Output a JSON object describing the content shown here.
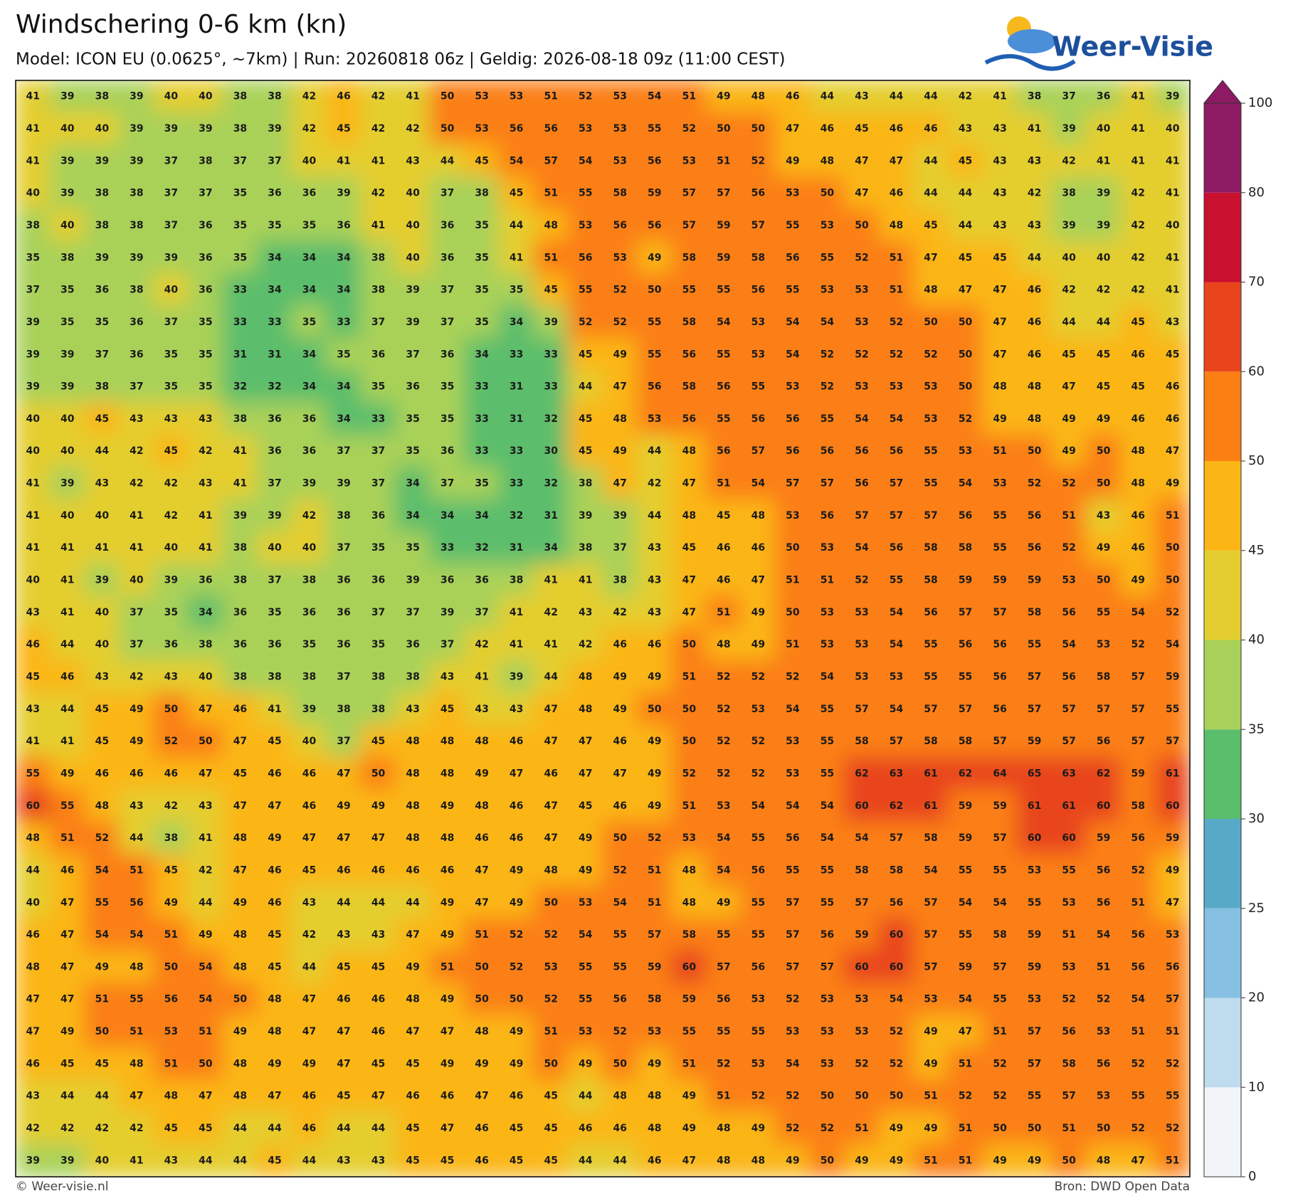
{
  "header": {
    "title": "Windschering 0-6 km (kn)",
    "subtitle": "Model: ICON EU (0.0625°, ~7km)  |  Run: 20260818 06z  |  Geldig: 2026-08-18 09z (11:00 CEST)",
    "logo": "Weer-Visie"
  },
  "map": {
    "rows": [
      [
        41,
        39,
        38,
        39,
        40,
        40,
        38,
        38,
        42,
        46,
        42,
        41,
        50,
        53,
        53,
        51,
        52,
        53,
        54,
        51,
        49,
        48,
        46,
        44,
        43,
        44,
        44,
        42,
        41,
        38,
        37,
        36,
        41,
        39
      ],
      [
        41,
        40,
        40,
        39,
        39,
        39,
        38,
        39,
        42,
        45,
        42,
        42,
        50,
        53,
        56,
        56,
        53,
        53,
        55,
        52,
        50,
        50,
        47,
        46,
        45,
        46,
        46,
        43,
        43,
        41,
        39,
        40,
        41,
        40
      ],
      [
        41,
        39,
        39,
        39,
        37,
        38,
        37,
        37,
        40,
        41,
        41,
        43,
        44,
        45,
        54,
        57,
        54,
        53,
        56,
        53,
        51,
        52,
        49,
        48,
        47,
        47,
        44,
        45,
        43,
        43,
        42,
        41,
        41,
        41
      ],
      [
        40,
        39,
        38,
        38,
        37,
        37,
        35,
        36,
        36,
        39,
        42,
        40,
        37,
        38,
        45,
        51,
        55,
        58,
        59,
        57,
        57,
        56,
        53,
        50,
        47,
        46,
        44,
        44,
        43,
        42,
        38,
        39,
        42,
        41
      ],
      [
        38,
        40,
        38,
        38,
        37,
        36,
        35,
        35,
        35,
        36,
        41,
        40,
        36,
        35,
        44,
        48,
        53,
        56,
        56,
        57,
        59,
        57,
        55,
        53,
        50,
        48,
        45,
        44,
        43,
        43,
        39,
        39,
        42,
        40
      ],
      [
        35,
        38,
        39,
        39,
        39,
        36,
        35,
        34,
        34,
        34,
        38,
        40,
        36,
        35,
        41,
        51,
        56,
        53,
        49,
        58,
        59,
        58,
        56,
        55,
        52,
        51,
        47,
        45,
        45,
        44,
        40,
        40,
        42,
        41
      ],
      [
        37,
        35,
        36,
        38,
        40,
        36,
        33,
        34,
        34,
        34,
        38,
        39,
        37,
        35,
        35,
        45,
        55,
        52,
        50,
        55,
        55,
        56,
        55,
        53,
        53,
        51,
        48,
        47,
        47,
        46,
        42,
        42,
        42,
        41
      ],
      [
        39,
        35,
        35,
        36,
        37,
        35,
        33,
        33,
        35,
        33,
        37,
        39,
        37,
        35,
        34,
        39,
        52,
        52,
        55,
        58,
        54,
        53,
        54,
        54,
        53,
        52,
        50,
        50,
        47,
        46,
        44,
        44,
        45,
        43
      ],
      [
        39,
        39,
        37,
        36,
        35,
        35,
        31,
        31,
        34,
        35,
        36,
        37,
        36,
        34,
        33,
        33,
        45,
        49,
        55,
        56,
        55,
        53,
        54,
        52,
        52,
        52,
        52,
        50,
        47,
        46,
        45,
        45,
        46,
        45
      ],
      [
        39,
        39,
        38,
        37,
        35,
        35,
        32,
        32,
        34,
        34,
        35,
        36,
        35,
        33,
        31,
        33,
        44,
        47,
        56,
        58,
        56,
        55,
        53,
        52,
        53,
        53,
        53,
        50,
        48,
        48,
        47,
        45,
        45,
        46
      ],
      [
        40,
        40,
        45,
        43,
        43,
        43,
        38,
        36,
        36,
        34,
        33,
        35,
        35,
        33,
        31,
        32,
        45,
        48,
        53,
        56,
        55,
        56,
        56,
        55,
        54,
        54,
        53,
        52,
        49,
        48,
        49,
        49,
        46,
        46
      ],
      [
        40,
        40,
        44,
        42,
        45,
        42,
        41,
        36,
        36,
        37,
        37,
        35,
        36,
        33,
        33,
        30,
        45,
        49,
        44,
        48,
        56,
        57,
        56,
        56,
        56,
        56,
        55,
        53,
        51,
        50,
        49,
        50,
        48,
        47
      ],
      [
        41,
        39,
        43,
        42,
        42,
        43,
        41,
        37,
        39,
        39,
        37,
        34,
        37,
        35,
        33,
        32,
        38,
        47,
        42,
        47,
        51,
        54,
        57,
        57,
        56,
        57,
        55,
        54,
        53,
        52,
        52,
        50,
        48,
        49
      ],
      [
        41,
        40,
        40,
        41,
        42,
        41,
        39,
        39,
        42,
        38,
        36,
        34,
        34,
        34,
        32,
        31,
        39,
        39,
        44,
        48,
        45,
        48,
        53,
        56,
        57,
        57,
        57,
        56,
        55,
        56,
        51,
        43,
        46,
        51
      ],
      [
        41,
        41,
        41,
        41,
        40,
        41,
        38,
        40,
        40,
        37,
        35,
        35,
        33,
        32,
        31,
        34,
        38,
        37,
        43,
        45,
        46,
        46,
        50,
        53,
        54,
        56,
        58,
        58,
        55,
        56,
        52,
        49,
        46,
        50
      ],
      [
        40,
        41,
        39,
        40,
        39,
        36,
        38,
        37,
        38,
        36,
        36,
        39,
        36,
        36,
        38,
        41,
        41,
        38,
        43,
        47,
        46,
        47,
        51,
        51,
        52,
        55,
        58,
        59,
        59,
        59,
        53,
        50,
        49,
        50
      ],
      [
        43,
        41,
        40,
        37,
        35,
        34,
        36,
        35,
        36,
        36,
        37,
        37,
        39,
        37,
        41,
        42,
        43,
        42,
        43,
        47,
        51,
        49,
        50,
        53,
        53,
        54,
        56,
        57,
        57,
        58,
        56,
        55,
        54,
        52
      ],
      [
        46,
        44,
        40,
        37,
        36,
        38,
        36,
        36,
        35,
        36,
        35,
        36,
        37,
        42,
        41,
        41,
        42,
        46,
        46,
        50,
        48,
        49,
        51,
        53,
        53,
        54,
        55,
        56,
        56,
        55,
        54,
        53,
        52,
        54
      ],
      [
        45,
        46,
        43,
        42,
        43,
        40,
        38,
        38,
        38,
        37,
        38,
        38,
        43,
        41,
        39,
        44,
        48,
        49,
        49,
        51,
        52,
        52,
        52,
        54,
        53,
        53,
        55,
        55,
        56,
        57,
        56,
        58,
        57,
        59
      ],
      [
        43,
        44,
        45,
        49,
        50,
        47,
        46,
        41,
        39,
        38,
        38,
        43,
        45,
        43,
        43,
        47,
        48,
        49,
        50,
        50,
        52,
        53,
        54,
        55,
        57,
        54,
        57,
        57,
        56,
        57,
        57,
        57,
        57,
        55
      ],
      [
        41,
        41,
        45,
        49,
        52,
        50,
        47,
        45,
        40,
        37,
        45,
        48,
        48,
        48,
        46,
        47,
        47,
        46,
        49,
        50,
        52,
        52,
        53,
        55,
        58,
        57,
        58,
        58,
        57,
        59,
        57,
        56,
        57,
        57
      ],
      [
        55,
        49,
        46,
        46,
        46,
        47,
        45,
        46,
        46,
        47,
        50,
        48,
        48,
        49,
        47,
        46,
        47,
        47,
        49,
        52,
        52,
        52,
        53,
        55,
        62,
        63,
        61,
        62,
        64,
        65,
        63,
        62,
        59,
        61
      ],
      [
        60,
        55,
        48,
        43,
        42,
        43,
        47,
        47,
        46,
        49,
        49,
        48,
        49,
        48,
        46,
        47,
        45,
        46,
        49,
        51,
        53,
        54,
        54,
        54,
        60,
        62,
        61,
        59,
        59,
        61,
        61,
        60,
        58,
        60
      ],
      [
        48,
        51,
        52,
        44,
        38,
        41,
        48,
        49,
        47,
        47,
        47,
        48,
        48,
        46,
        46,
        47,
        49,
        50,
        52,
        53,
        54,
        55,
        56,
        54,
        54,
        57,
        58,
        59,
        57,
        60,
        60,
        59,
        56,
        59
      ],
      [
        44,
        46,
        54,
        51,
        45,
        42,
        47,
        46,
        45,
        46,
        46,
        46,
        46,
        47,
        49,
        48,
        49,
        52,
        51,
        48,
        54,
        56,
        55,
        55,
        58,
        58,
        54,
        55,
        55,
        53,
        55,
        56,
        52,
        49
      ],
      [
        40,
        47,
        55,
        56,
        49,
        44,
        49,
        46,
        43,
        44,
        44,
        44,
        49,
        47,
        49,
        50,
        53,
        54,
        51,
        48,
        49,
        55,
        57,
        55,
        57,
        56,
        57,
        54,
        54,
        55,
        53,
        56,
        51,
        47
      ],
      [
        46,
        47,
        54,
        54,
        51,
        49,
        48,
        45,
        42,
        43,
        43,
        47,
        49,
        51,
        52,
        52,
        54,
        55,
        57,
        58,
        55,
        55,
        57,
        56,
        59,
        60,
        57,
        55,
        58,
        59,
        51,
        54,
        56,
        53
      ],
      [
        48,
        47,
        49,
        48,
        50,
        54,
        48,
        45,
        44,
        45,
        45,
        49,
        51,
        50,
        52,
        53,
        55,
        55,
        59,
        60,
        57,
        56,
        57,
        57,
        60,
        60,
        57,
        59,
        57,
        59,
        53,
        51,
        56,
        56
      ],
      [
        47,
        47,
        51,
        55,
        56,
        54,
        50,
        48,
        47,
        46,
        46,
        48,
        49,
        50,
        50,
        52,
        55,
        56,
        58,
        59,
        56,
        53,
        52,
        53,
        53,
        54,
        53,
        54,
        55,
        53,
        52,
        52,
        54,
        57
      ],
      [
        47,
        49,
        50,
        51,
        53,
        51,
        49,
        48,
        47,
        47,
        46,
        47,
        47,
        48,
        49,
        51,
        53,
        52,
        53,
        55,
        55,
        55,
        53,
        53,
        53,
        52,
        49,
        47,
        51,
        57,
        56,
        53,
        51,
        51
      ],
      [
        46,
        45,
        45,
        48,
        51,
        50,
        48,
        49,
        49,
        47,
        45,
        45,
        49,
        49,
        49,
        50,
        49,
        50,
        49,
        51,
        52,
        53,
        54,
        53,
        52,
        52,
        49,
        51,
        52,
        57,
        58,
        56,
        52,
        52
      ],
      [
        43,
        44,
        44,
        47,
        48,
        47,
        48,
        47,
        46,
        45,
        47,
        46,
        46,
        47,
        46,
        45,
        44,
        48,
        48,
        49,
        51,
        52,
        52,
        50,
        50,
        50,
        51,
        52,
        52,
        55,
        57,
        53,
        55,
        55
      ],
      [
        42,
        42,
        42,
        42,
        45,
        45,
        44,
        44,
        46,
        44,
        44,
        45,
        47,
        46,
        45,
        45,
        46,
        46,
        48,
        49,
        48,
        49,
        52,
        52,
        51,
        49,
        49,
        51,
        50,
        50,
        51,
        50,
        52,
        52
      ],
      [
        39,
        39,
        40,
        41,
        43,
        44,
        44,
        45,
        44,
        43,
        43,
        45,
        45,
        46,
        45,
        45,
        44,
        44,
        46,
        47,
        48,
        48,
        49,
        50,
        49,
        49,
        51,
        51,
        49,
        49,
        50,
        48,
        47,
        51
      ]
    ]
  },
  "colorbar": {
    "levels": [
      0,
      10,
      20,
      25,
      30,
      35,
      40,
      45,
      50,
      60,
      70,
      80,
      100
    ],
    "colors": [
      "#f1f5f9",
      "#bfdcef",
      "#86c1e4",
      "#58a9c8",
      "#5bbe6c",
      "#a9d159",
      "#e4ce2f",
      "#fbb615",
      "#fb7f13",
      "#e8451d",
      "#c9102f",
      "#8c1b63"
    ],
    "extend": "max"
  },
  "footer": {
    "left": "© Weer-visie.nl",
    "right": "Bron: DWD Open Data"
  }
}
